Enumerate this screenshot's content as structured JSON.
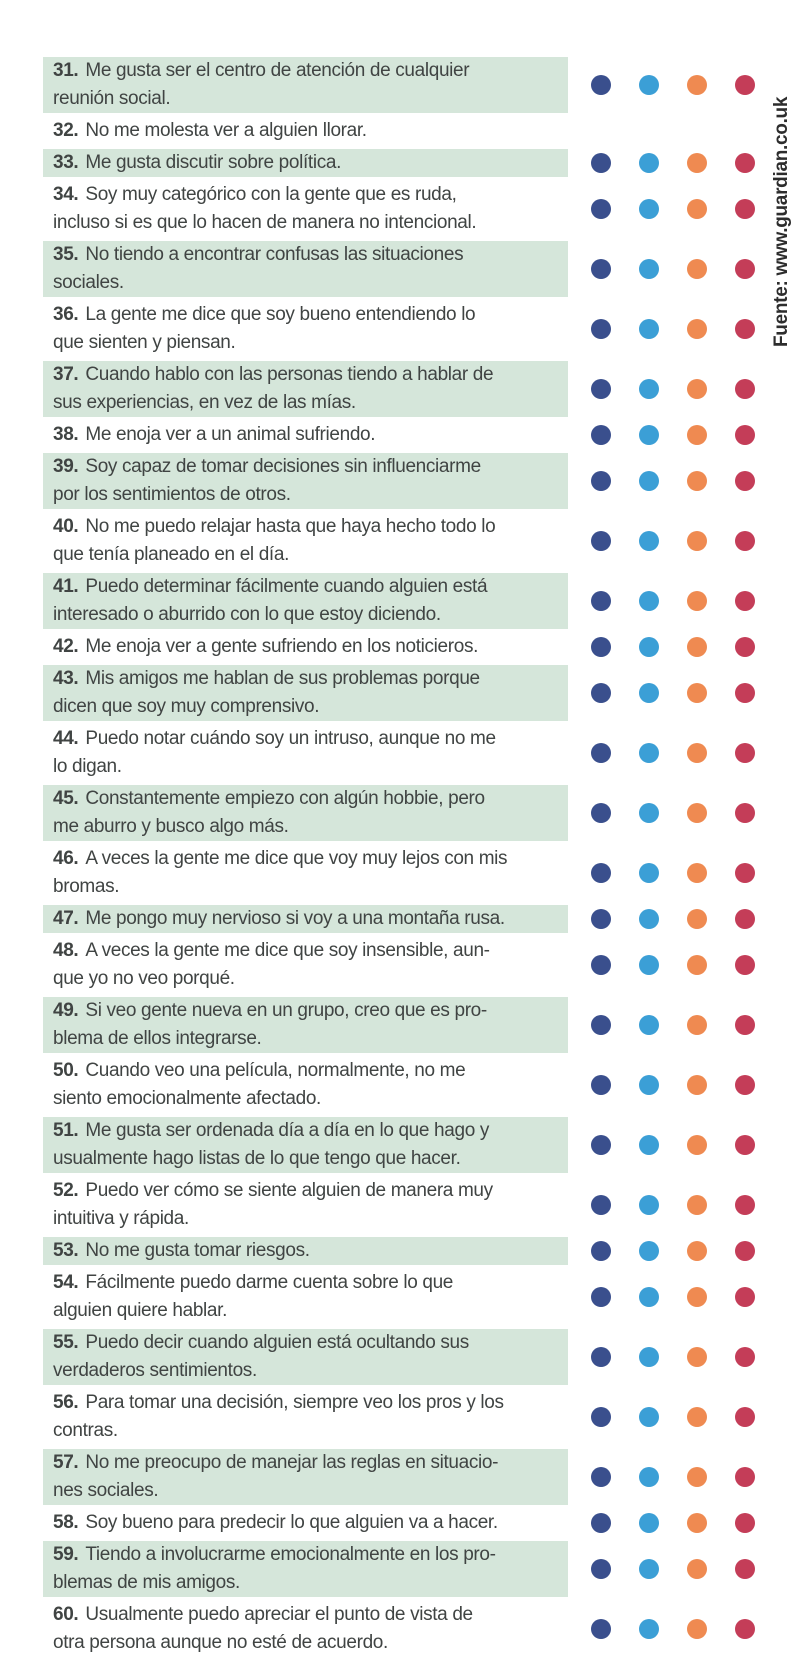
{
  "source_label": "Fuente: www.guardian.co.uk",
  "colors": {
    "page_background": "#ffffff",
    "row_highlight": "#d5e6da",
    "question_text": "#404443",
    "source_text": "#2d2d2d"
  },
  "answer_options": [
    {
      "name": "dark-blue",
      "color": "#3a4f8d"
    },
    {
      "name": "light-blue",
      "color": "#3b9fd6"
    },
    {
      "name": "orange",
      "color": "#ef8a51"
    },
    {
      "name": "red",
      "color": "#c43d58"
    }
  ],
  "items": [
    {
      "number": "31.",
      "lines": [
        "Me gusta ser el centro de atención de cualquier",
        "reunión social."
      ],
      "highlighted": true,
      "has_dots": true
    },
    {
      "number": "32.",
      "lines": [
        "No me molesta ver a alguien llorar."
      ],
      "highlighted": false,
      "has_dots": false
    },
    {
      "number": "33.",
      "lines": [
        "Me gusta discutir sobre política."
      ],
      "highlighted": true,
      "has_dots": true
    },
    {
      "number": "34.",
      "lines": [
        "Soy muy categórico con la gente que es ruda,",
        "incluso si es que lo hacen de manera no intencional."
      ],
      "highlighted": false,
      "has_dots": true
    },
    {
      "number": "35.",
      "lines": [
        "No tiendo a encontrar confusas las situaciones",
        "sociales."
      ],
      "highlighted": true,
      "has_dots": true
    },
    {
      "number": "36.",
      "lines": [
        "La gente me dice que soy bueno entendiendo lo",
        "que sienten y piensan."
      ],
      "highlighted": false,
      "has_dots": true
    },
    {
      "number": "37.",
      "lines": [
        "Cuando hablo con las personas tiendo a hablar de",
        "sus experiencias, en vez de las mías."
      ],
      "highlighted": true,
      "has_dots": true
    },
    {
      "number": "38.",
      "lines": [
        "Me enoja ver a un animal sufriendo."
      ],
      "highlighted": false,
      "has_dots": true
    },
    {
      "number": "39.",
      "lines": [
        "Soy capaz de tomar decisiones sin influenciarme",
        "por los sentimientos de otros."
      ],
      "highlighted": true,
      "has_dots": true
    },
    {
      "number": "40.",
      "lines": [
        "No me puedo relajar hasta que haya hecho todo lo",
        "que tenía planeado en el día."
      ],
      "highlighted": false,
      "has_dots": true
    },
    {
      "number": "41.",
      "lines": [
        "Puedo determinar fácilmente cuando alguien está",
        "interesado o aburrido con lo que estoy diciendo."
      ],
      "highlighted": true,
      "has_dots": true
    },
    {
      "number": "42.",
      "lines": [
        "Me enoja ver a gente sufriendo en los noticieros."
      ],
      "highlighted": false,
      "has_dots": true
    },
    {
      "number": "43.",
      "lines": [
        "Mis amigos me hablan de sus problemas porque",
        "dicen que soy muy comprensivo."
      ],
      "highlighted": true,
      "has_dots": true
    },
    {
      "number": "44.",
      "lines": [
        "Puedo notar cuándo soy un intruso, aunque no me",
        "lo digan."
      ],
      "highlighted": false,
      "has_dots": true
    },
    {
      "number": "45.",
      "lines": [
        "Constantemente empiezo con algún hobbie, pero",
        "me aburro y busco algo más."
      ],
      "highlighted": true,
      "has_dots": true
    },
    {
      "number": "46.",
      "lines": [
        "A veces la gente me dice que voy muy lejos con mis",
        "bromas."
      ],
      "highlighted": false,
      "has_dots": true
    },
    {
      "number": "47.",
      "lines": [
        "Me pongo muy nervioso si voy a una montaña rusa."
      ],
      "highlighted": true,
      "has_dots": true
    },
    {
      "number": "48.",
      "lines": [
        "A veces la gente me dice que soy insensible, aun-",
        "que yo no veo porqué."
      ],
      "highlighted": false,
      "has_dots": true
    },
    {
      "number": "49.",
      "lines": [
        "Si veo gente nueva en un grupo, creo que es pro-",
        "blema de ellos integrarse."
      ],
      "highlighted": true,
      "has_dots": true
    },
    {
      "number": "50.",
      "lines": [
        "Cuando veo una película, normalmente, no me",
        "siento emocionalmente afectado."
      ],
      "highlighted": false,
      "has_dots": true
    },
    {
      "number": "51.",
      "lines": [
        "Me gusta ser ordenada día a día en lo que hago y",
        "usualmente hago listas de lo que tengo que hacer."
      ],
      "highlighted": true,
      "has_dots": true
    },
    {
      "number": "52.",
      "lines": [
        "Puedo ver cómo se siente alguien de manera muy",
        "intuitiva y rápida."
      ],
      "highlighted": false,
      "has_dots": true
    },
    {
      "number": "53.",
      "lines": [
        "No me gusta tomar riesgos."
      ],
      "highlighted": true,
      "has_dots": true
    },
    {
      "number": "54.",
      "lines": [
        "Fácilmente puedo darme cuenta sobre lo que",
        "alguien quiere hablar."
      ],
      "highlighted": false,
      "has_dots": true
    },
    {
      "number": "55.",
      "lines": [
        "Puedo decir cuando alguien está ocultando sus",
        "verdaderos sentimientos."
      ],
      "highlighted": true,
      "has_dots": true
    },
    {
      "number": "56.",
      "lines": [
        "Para tomar una decisión, siempre veo los pros y los",
        "contras."
      ],
      "highlighted": false,
      "has_dots": true
    },
    {
      "number": "57.",
      "lines": [
        "No me preocupo de manejar las reglas en situacio-",
        "nes sociales."
      ],
      "highlighted": true,
      "has_dots": true
    },
    {
      "number": "58.",
      "lines": [
        "Soy bueno para predecir lo que alguien va a hacer."
      ],
      "highlighted": false,
      "has_dots": true
    },
    {
      "number": "59.",
      "lines": [
        "Tiendo a involucrarme emocionalmente en los pro-",
        "blemas de mis amigos."
      ],
      "highlighted": true,
      "has_dots": true
    },
    {
      "number": "60.",
      "lines": [
        "Usualmente puedo apreciar el punto de vista de",
        "otra persona aunque no esté de acuerdo."
      ],
      "highlighted": false,
      "has_dots": true
    }
  ]
}
